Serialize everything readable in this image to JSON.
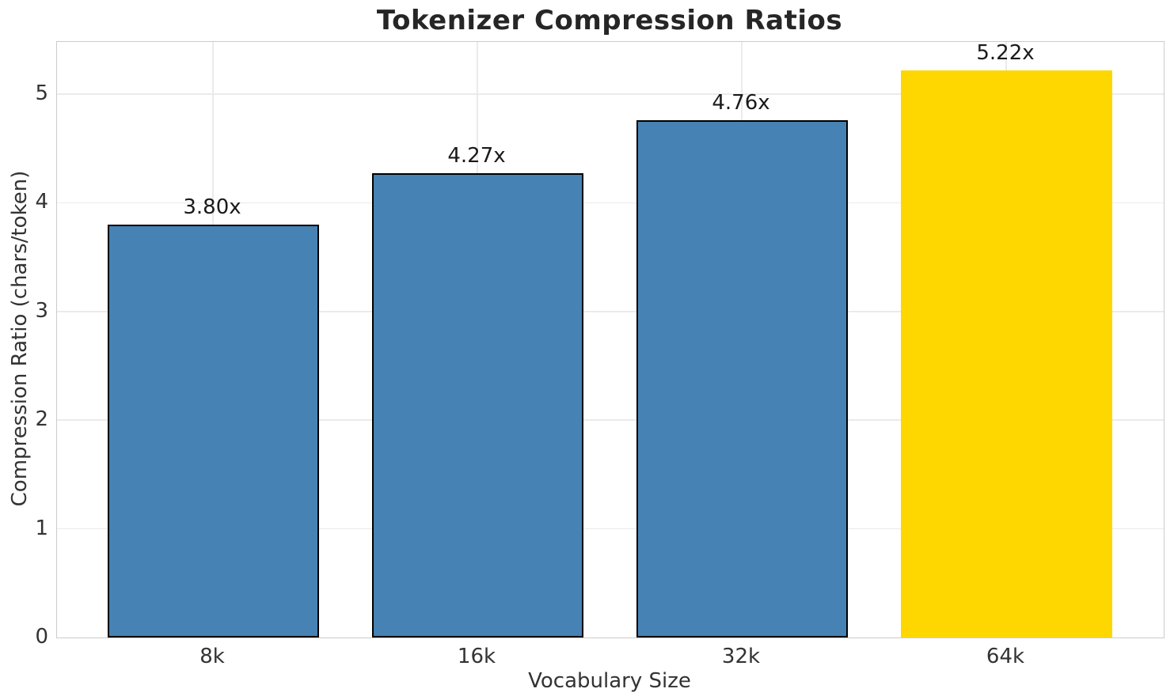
{
  "chart_data": {
    "type": "bar",
    "title": "Tokenizer Compression Ratios",
    "xlabel": "Vocabulary Size",
    "ylabel": "Compression Ratio (chars/token)",
    "categories": [
      "8k",
      "16k",
      "32k",
      "64k"
    ],
    "values": [
      3.8,
      4.27,
      4.76,
      5.22
    ],
    "bar_labels": [
      "3.80x",
      "4.27x",
      "4.76x",
      "5.22x"
    ],
    "bar_colors": [
      "#4682B4",
      "#4682B4",
      "#4682B4",
      "#FFD700"
    ],
    "bar_edge_colors": [
      "#000000",
      "#000000",
      "#000000",
      "none"
    ],
    "yticks": [
      "0",
      "1",
      "2",
      "3",
      "4",
      "5"
    ],
    "ylim": [
      0,
      5.48
    ],
    "grid": true,
    "legend_position": "none",
    "colors": {
      "bar_default": "#4682B4",
      "bar_highlight": "#FFD700",
      "grid": "#ebebeb",
      "spine": "#cccccc",
      "title_text": "#262626",
      "tick_text": "#333333",
      "bar_label_text": "#1a1a1a"
    }
  }
}
